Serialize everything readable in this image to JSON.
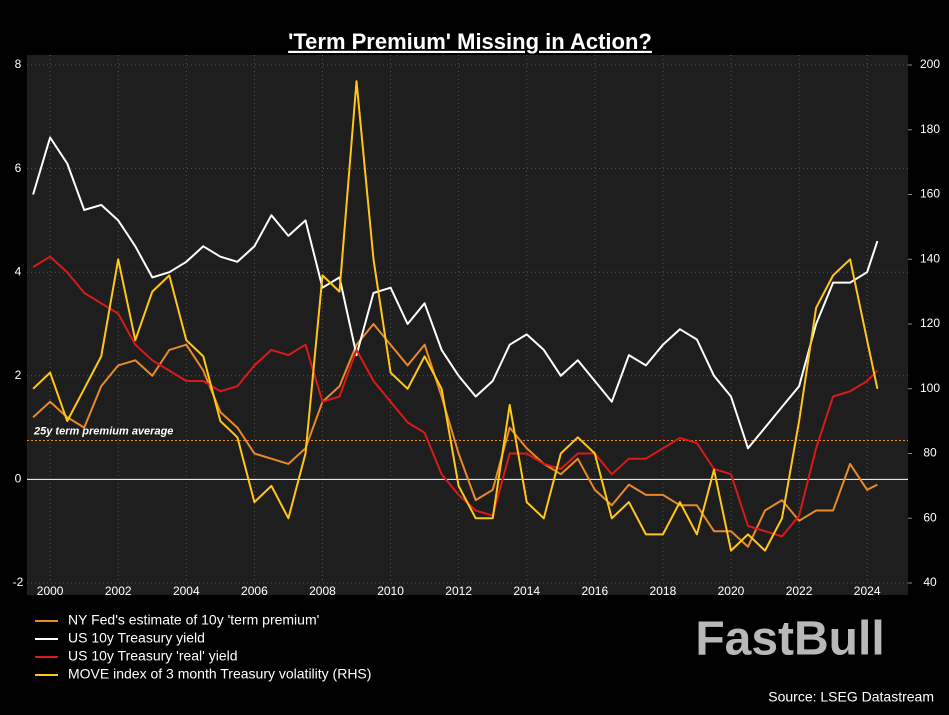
{
  "chart_data": {
    "type": "line",
    "title": "'Term Premium' Missing in Action?",
    "annotation": {
      "label": "25y term premium average",
      "value": 0.75,
      "color": "#e8892a"
    },
    "zero_line": 0,
    "source": "Source: LSEG Datastream",
    "watermark": "FastBull",
    "x": [
      1999.5,
      2000,
      2000.5,
      2001,
      2001.5,
      2002,
      2002.5,
      2003,
      2003.5,
      2004,
      2004.5,
      2005,
      2005.5,
      2006,
      2006.5,
      2007,
      2007.5,
      2008,
      2008.5,
      2009,
      2009.5,
      2010,
      2010.5,
      2011,
      2011.5,
      2012,
      2012.5,
      2013,
      2013.5,
      2014,
      2014.5,
      2015,
      2015.5,
      2016,
      2016.5,
      2017,
      2017.5,
      2018,
      2018.5,
      2019,
      2019.5,
      2020,
      2020.5,
      2021,
      2021.5,
      2022,
      2022.5,
      2023,
      2023.5,
      2024,
      2024.3
    ],
    "xlim": [
      1999.32,
      2025.2
    ],
    "xticks": [
      2000,
      2002,
      2004,
      2006,
      2008,
      2010,
      2012,
      2014,
      2016,
      2018,
      2020,
      2022,
      2024
    ],
    "ylim": [
      -2,
      8
    ],
    "yticks": [
      -2,
      0,
      2,
      4,
      6,
      8
    ],
    "y2lim": [
      40,
      200
    ],
    "y2ticks": [
      40,
      60,
      80,
      100,
      120,
      140,
      160,
      180,
      200
    ],
    "grid": true,
    "series": [
      {
        "name": "NY Fed's estimate of 10y 'term premium'",
        "color": "#e8892a",
        "values": [
          1.2,
          1.5,
          1.2,
          1.0,
          1.8,
          2.2,
          2.3,
          2.0,
          2.5,
          2.6,
          2.1,
          1.3,
          1.0,
          0.5,
          0.4,
          0.3,
          0.6,
          1.5,
          1.8,
          2.6,
          3.0,
          2.6,
          2.2,
          2.6,
          1.6,
          0.5,
          -0.4,
          -0.2,
          1.0,
          0.6,
          0.3,
          0.1,
          0.4,
          -0.2,
          -0.5,
          -0.1,
          -0.3,
          -0.3,
          -0.5,
          -0.5,
          -1.0,
          -1.0,
          -1.3,
          -0.6,
          -0.4,
          -0.8,
          -0.6,
          -0.6,
          0.3,
          -0.2,
          -0.1
        ]
      },
      {
        "name": "US 10y Treasury yield",
        "color": "#ffffff",
        "values": [
          5.5,
          6.6,
          6.1,
          5.2,
          5.3,
          5.0,
          4.5,
          3.9,
          4.0,
          4.2,
          4.5,
          4.3,
          4.2,
          4.5,
          5.1,
          4.7,
          5.0,
          3.7,
          3.9,
          2.4,
          3.6,
          3.7,
          3.0,
          3.4,
          2.5,
          2.0,
          1.6,
          1.9,
          2.6,
          2.8,
          2.5,
          2.0,
          2.3,
          1.9,
          1.5,
          2.4,
          2.2,
          2.6,
          2.9,
          2.7,
          2.0,
          1.6,
          0.6,
          1.0,
          1.4,
          1.8,
          3.0,
          3.8,
          3.8,
          4.0,
          4.6
        ]
      },
      {
        "name": "US 10y Treasury 'real' yield",
        "color": "#d91a1a",
        "values": [
          4.1,
          4.3,
          4.0,
          3.6,
          3.4,
          3.2,
          2.6,
          2.3,
          2.1,
          1.9,
          1.9,
          1.7,
          1.8,
          2.2,
          2.5,
          2.4,
          2.6,
          1.5,
          1.6,
          2.5,
          1.9,
          1.5,
          1.1,
          0.9,
          0.1,
          -0.3,
          -0.6,
          -0.7,
          0.5,
          0.5,
          0.3,
          0.2,
          0.5,
          0.5,
          0.1,
          0.4,
          0.4,
          0.6,
          0.8,
          0.7,
          0.2,
          0.1,
          -0.9,
          -1.0,
          -1.1,
          -0.7,
          0.6,
          1.6,
          1.7,
          1.9,
          2.1
        ]
      },
      {
        "name": "MOVE index of 3 month Treasury volatility (RHS)",
        "color": "#ffc61a",
        "axis": "y2",
        "values": [
          100,
          105,
          90,
          100,
          110,
          140,
          115,
          130,
          135,
          115,
          110,
          90,
          85,
          65,
          70,
          60,
          80,
          135,
          130,
          195,
          140,
          105,
          100,
          110,
          100,
          70,
          60,
          60,
          95,
          65,
          60,
          80,
          85,
          80,
          60,
          65,
          55,
          55,
          65,
          55,
          75,
          50,
          55,
          50,
          60,
          90,
          125,
          135,
          140,
          115,
          100
        ]
      }
    ]
  }
}
